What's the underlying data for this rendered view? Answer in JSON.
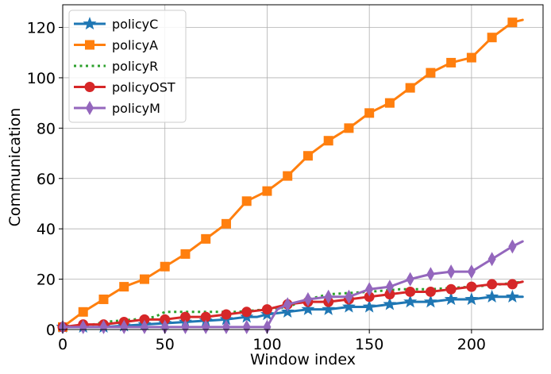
{
  "chart_data": {
    "type": "line",
    "title": "",
    "xlabel": "Window index",
    "ylabel": "Communication",
    "xlim": [
      0,
      235
    ],
    "ylim": [
      0,
      129
    ],
    "xticks": [
      0,
      50,
      100,
      150,
      200
    ],
    "yticks": [
      0,
      20,
      40,
      60,
      80,
      100,
      120
    ],
    "grid": true,
    "legend_position": "top-left",
    "series": [
      {
        "name": "policyC",
        "color": "#1f77b4",
        "marker": "star",
        "linestyle": "solid",
        "markevery": 10,
        "x": [
          0,
          20,
          40,
          60,
          80,
          90,
          95,
          100,
          110,
          120,
          130,
          140,
          150,
          160,
          170,
          180,
          190,
          200,
          210,
          220,
          225
        ],
        "y": [
          1,
          1,
          2,
          3,
          4,
          5,
          5,
          6,
          7,
          8,
          8,
          9,
          9,
          10,
          11,
          11,
          12,
          12,
          13,
          13,
          13
        ]
      },
      {
        "name": "policyA",
        "color": "#ff7f0e",
        "marker": "square",
        "linestyle": "solid",
        "markevery": 10,
        "x": [
          0,
          10,
          20,
          30,
          40,
          50,
          60,
          70,
          80,
          90,
          95,
          100,
          110,
          120,
          130,
          140,
          150,
          160,
          170,
          180,
          190,
          200,
          210,
          220,
          225
        ],
        "y": [
          1,
          7,
          12,
          17,
          20,
          25,
          30,
          36,
          42,
          51,
          53,
          55,
          61,
          69,
          75,
          80,
          86,
          90,
          96,
          102,
          106,
          108,
          116,
          122,
          123
        ]
      },
      {
        "name": "policyR",
        "color": "#2ca02c",
        "marker": "none",
        "linestyle": "dotted",
        "x": [
          0,
          15,
          20,
          35,
          45,
          50,
          60,
          75,
          85,
          100,
          110,
          120,
          130,
          150,
          165,
          180,
          200,
          215,
          225
        ],
        "y": [
          1,
          2,
          3,
          4,
          5,
          7,
          7,
          7,
          7,
          8,
          9,
          12,
          14,
          15,
          16,
          16,
          17,
          18,
          19
        ]
      },
      {
        "name": "policyOST",
        "color": "#d62728",
        "marker": "circle",
        "linestyle": "solid",
        "markevery": 10,
        "x": [
          0,
          10,
          20,
          30,
          40,
          50,
          60,
          70,
          80,
          90,
          100,
          110,
          120,
          130,
          140,
          150,
          160,
          170,
          180,
          190,
          200,
          210,
          220,
          225
        ],
        "y": [
          1,
          2,
          2,
          3,
          4,
          4,
          5,
          5,
          6,
          7,
          8,
          10,
          11,
          11,
          12,
          13,
          14,
          15,
          15,
          16,
          17,
          18,
          18,
          19
        ]
      },
      {
        "name": "policyM",
        "color": "#9467bd",
        "marker": "thin_diamond",
        "linestyle": "solid",
        "markevery": 10,
        "x": [
          0,
          10,
          20,
          30,
          40,
          50,
          60,
          70,
          80,
          90,
          100,
          102,
          105,
          110,
          120,
          130,
          140,
          150,
          160,
          170,
          180,
          190,
          200,
          210,
          220,
          225
        ],
        "y": [
          1,
          1,
          1,
          1,
          1,
          1,
          1,
          1,
          1,
          1,
          1,
          4,
          8,
          10,
          12,
          13,
          13,
          16,
          17,
          20,
          22,
          23,
          23,
          28,
          33,
          35
        ]
      }
    ]
  }
}
